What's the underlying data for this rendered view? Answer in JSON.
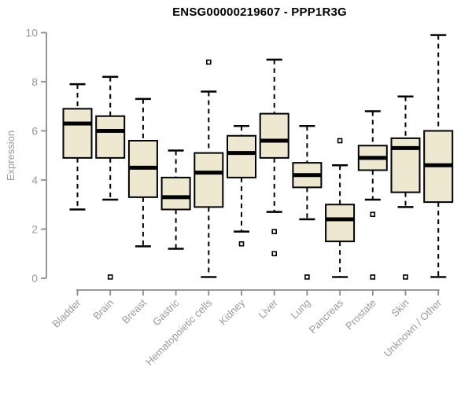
{
  "chart_data": {
    "type": "boxplot",
    "title": "ENSG00000219607 - PPP1R3G",
    "ylabel": "Expression",
    "xlabel": "",
    "ylim": [
      0,
      10
    ],
    "yticks": [
      0,
      2,
      4,
      6,
      8,
      10
    ],
    "grid": false,
    "legend": false,
    "categories": [
      "Bladder",
      "Brain",
      "Breast",
      "Gastric",
      "Hematopoietic cells",
      "Kidney",
      "Liver",
      "Lung",
      "Pancreas",
      "Prostate",
      "Skin",
      "Unknown / Other"
    ],
    "boxes": [
      {
        "category": "Bladder",
        "whisker_low": 2.8,
        "q1": 4.9,
        "median": 6.3,
        "q3": 6.9,
        "whisker_high": 7.9,
        "outliers": []
      },
      {
        "category": "Brain",
        "whisker_low": 3.2,
        "q1": 4.9,
        "median": 6.0,
        "q3": 6.6,
        "whisker_high": 8.2,
        "outliers": [
          0.05
        ]
      },
      {
        "category": "Breast",
        "whisker_low": 1.3,
        "q1": 3.3,
        "median": 4.5,
        "q3": 5.6,
        "whisker_high": 7.3,
        "outliers": []
      },
      {
        "category": "Gastric",
        "whisker_low": 1.2,
        "q1": 2.8,
        "median": 3.3,
        "q3": 4.1,
        "whisker_high": 5.2,
        "outliers": []
      },
      {
        "category": "Hematopoietic cells",
        "whisker_low": 0.05,
        "q1": 2.9,
        "median": 4.3,
        "q3": 5.1,
        "whisker_high": 7.6,
        "outliers": [
          8.8
        ]
      },
      {
        "category": "Kidney",
        "whisker_low": 1.9,
        "q1": 4.1,
        "median": 5.1,
        "q3": 5.8,
        "whisker_high": 6.2,
        "outliers": [
          1.4
        ]
      },
      {
        "category": "Liver",
        "whisker_low": 2.7,
        "q1": 4.9,
        "median": 5.6,
        "q3": 6.7,
        "whisker_high": 8.9,
        "outliers": [
          1.9,
          1.0
        ]
      },
      {
        "category": "Lung",
        "whisker_low": 2.4,
        "q1": 3.7,
        "median": 4.2,
        "q3": 4.7,
        "whisker_high": 6.2,
        "outliers": [
          0.05
        ]
      },
      {
        "category": "Pancreas",
        "whisker_low": 0.05,
        "q1": 1.5,
        "median": 2.4,
        "q3": 3.0,
        "whisker_high": 4.6,
        "outliers": [
          5.6
        ]
      },
      {
        "category": "Prostate",
        "whisker_low": 3.2,
        "q1": 4.4,
        "median": 4.9,
        "q3": 5.4,
        "whisker_high": 6.8,
        "outliers": [
          2.6,
          0.05
        ]
      },
      {
        "category": "Skin",
        "whisker_low": 2.9,
        "q1": 3.5,
        "median": 5.3,
        "q3": 5.7,
        "whisker_high": 7.4,
        "outliers": [
          0.05
        ]
      },
      {
        "category": "Unknown / Other",
        "whisker_low": 0.05,
        "q1": 3.1,
        "median": 4.6,
        "q3": 6.0,
        "whisker_high": 9.9,
        "outliers": []
      }
    ],
    "colors": {
      "box_fill": "#ede8cf",
      "box_line": "#000000",
      "axis": "#8c8c8c",
      "tick_label": "#9a9a9a",
      "title": "#000000",
      "background": "#ffffff"
    }
  }
}
